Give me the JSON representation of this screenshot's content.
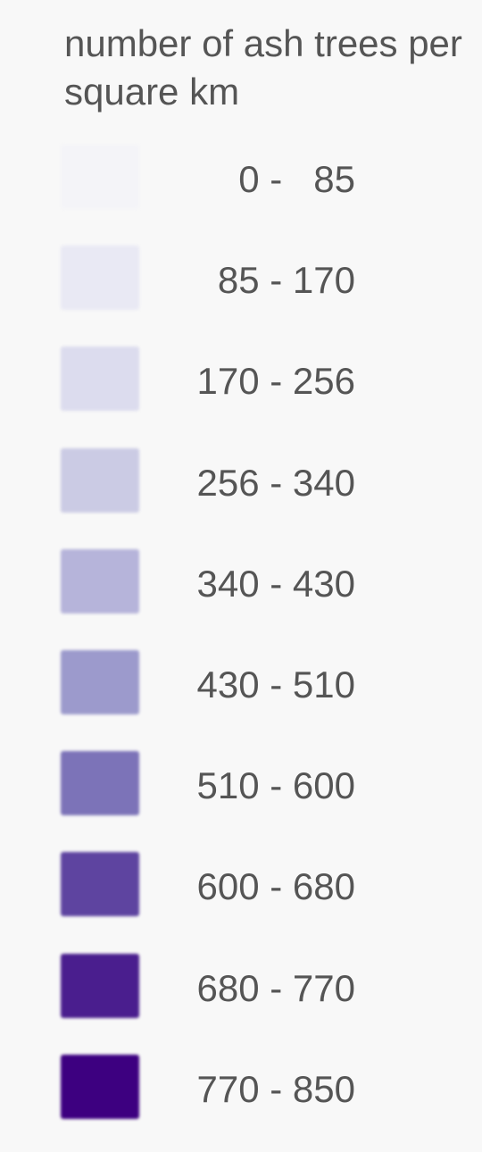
{
  "legend": {
    "title": "number of ash trees per square km",
    "items": [
      {
        "label": "0 -   85",
        "color": "#f4f4f8"
      },
      {
        "label": "85 - 170",
        "color": "#e9e9f4"
      },
      {
        "label": "170 - 256",
        "color": "#dcdcee"
      },
      {
        "label": "256 - 340",
        "color": "#cbcbe4"
      },
      {
        "label": "340 - 430",
        "color": "#b6b4da"
      },
      {
        "label": "430 - 510",
        "color": "#9c9acc"
      },
      {
        "label": "510 - 600",
        "color": "#7c73b8"
      },
      {
        "label": "600 - 680",
        "color": "#5e44a0"
      },
      {
        "label": "680 - 770",
        "color": "#4a1e8e"
      },
      {
        "label": "770 - 850",
        "color": "#3d0080"
      }
    ]
  }
}
